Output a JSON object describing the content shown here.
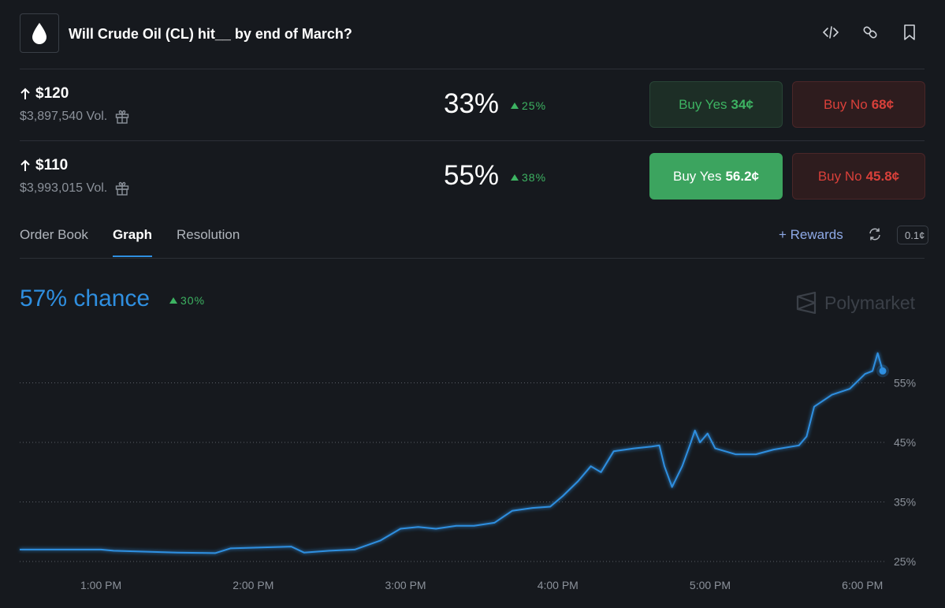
{
  "header": {
    "title": "Will Crude Oil (CL) hit__ by end of March?",
    "icons": [
      "drop-icon",
      "embed-code-icon",
      "link-icon",
      "bookmark-icon"
    ]
  },
  "markets": [
    {
      "target": "$120",
      "volume": "$3,897,540 Vol.",
      "chance": "33%",
      "change": "25%",
      "buy_yes_label": "Buy Yes",
      "buy_yes_price": "34¢",
      "buy_no_label": "Buy No",
      "buy_no_price": "68¢"
    },
    {
      "target": "$110",
      "volume": "$3,993,015 Vol.",
      "chance": "55%",
      "change": "38%",
      "buy_yes_label": "Buy Yes",
      "buy_yes_price": "56.2¢",
      "buy_no_label": "Buy No",
      "buy_no_price": "45.8¢"
    }
  ],
  "tabs": [
    {
      "label": "Order Book",
      "active": false
    },
    {
      "label": "Graph",
      "active": true
    },
    {
      "label": "Resolution",
      "active": false
    }
  ],
  "toolbar": {
    "rewards_label": "+ Rewards",
    "tick_size": "0.1¢"
  },
  "graph": {
    "chance": "57% chance",
    "change": "30%",
    "brand": "Polymarket"
  },
  "colors": {
    "line": "#2f8fe0",
    "up": "#3db362",
    "down": "#d9403a",
    "background": "#16191e"
  },
  "chart_data": {
    "type": "line",
    "series": [
      {
        "values": [
          [
            "12:28 PM",
            27
          ],
          [
            "12:45 PM",
            27
          ],
          [
            "1:00 PM",
            27
          ],
          [
            "1:05 PM",
            26.8
          ],
          [
            "1:30 PM",
            26.5
          ],
          [
            "1:45 PM",
            26.4
          ],
          [
            "1:51 PM",
            27.2
          ],
          [
            "2:15 PM",
            27.5
          ],
          [
            "2:20 PM",
            26.5
          ],
          [
            "2:30 PM",
            26.8
          ],
          [
            "2:40 PM",
            27
          ],
          [
            "2:50 PM",
            28.5
          ],
          [
            "2:58 PM",
            30.5
          ],
          [
            "3:05 PM",
            30.8
          ],
          [
            "3:12 PM",
            30.5
          ],
          [
            "3:20 PM",
            31
          ],
          [
            "3:27 PM",
            31
          ],
          [
            "3:35 PM",
            31.5
          ],
          [
            "3:42 PM",
            33.5
          ],
          [
            "3:50 PM",
            34
          ],
          [
            "3:57 PM",
            34.2
          ],
          [
            "4:02 PM",
            36
          ],
          [
            "4:08 PM",
            38.5
          ],
          [
            "4:13 PM",
            41
          ],
          [
            "4:17 PM",
            40
          ],
          [
            "4:22 PM",
            43.5
          ],
          [
            "4:30 PM",
            44
          ],
          [
            "4:37 PM",
            44.3
          ],
          [
            "4:40 PM",
            44.5
          ],
          [
            "4:42 PM",
            41
          ],
          [
            "4:45 PM",
            37.5
          ],
          [
            "4:49 PM",
            41
          ],
          [
            "4:52 PM",
            44.5
          ],
          [
            "4:54 PM",
            47
          ],
          [
            "4:56 PM",
            45
          ],
          [
            "4:59 PM",
            46.5
          ],
          [
            "5:02 PM",
            44
          ],
          [
            "5:10 PM",
            43
          ],
          [
            "5:18 PM",
            43
          ],
          [
            "5:25 PM",
            43.8
          ],
          [
            "5:35 PM",
            44.5
          ],
          [
            "5:38 PM",
            46
          ],
          [
            "5:41 PM",
            51
          ],
          [
            "5:48 PM",
            53
          ],
          [
            "5:55 PM",
            54
          ],
          [
            "6:01 PM",
            56.5
          ],
          [
            "6:04 PM",
            57
          ],
          [
            "6:06 PM",
            60
          ],
          [
            "6:08 PM",
            57
          ]
        ]
      }
    ],
    "x_ticks": [
      "1:00 PM",
      "2:00 PM",
      "3:00 PM",
      "4:00 PM",
      "5:00 PM",
      "6:00 PM"
    ],
    "y_ticks": [
      "25%",
      "35%",
      "45%",
      "55%"
    ],
    "ylim": [
      25,
      60
    ],
    "grid": true,
    "grid_style": "dotted"
  }
}
